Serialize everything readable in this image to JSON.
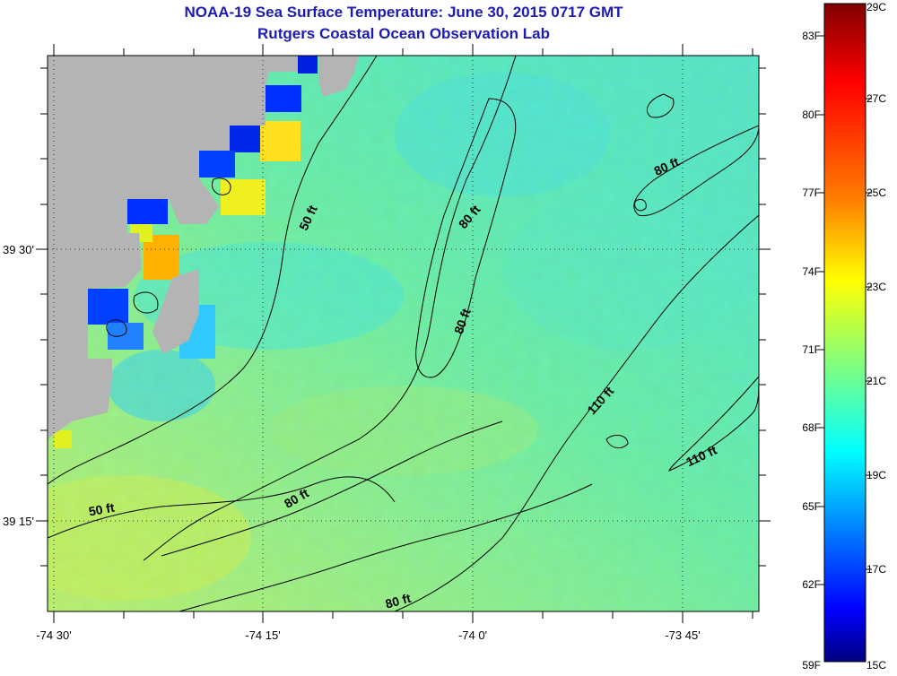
{
  "header": {
    "title": "NOAA-19 Sea Surface Temperature:  June 30, 2015 0717 GMT",
    "subtitle": "Rutgers Coastal Ocean Observation Lab"
  },
  "map": {
    "longitude_labels": [
      "-74 30'",
      "-74 15'",
      "-74 0'",
      "-73 45'"
    ],
    "latitude_labels": [
      "39 30'",
      "39 15'"
    ],
    "land_color": "#b4b4b4",
    "contour_color": "#000000",
    "contour_labels": [
      "50 ft",
      "80 ft",
      "80 ft",
      "80 ft",
      "80 ft",
      "50 ft",
      "80 ft",
      "110 ft",
      "110 ft"
    ]
  },
  "colorbar": {
    "fahrenheit_labels": [
      "83F",
      "80F",
      "77F",
      "74F",
      "71F",
      "68F",
      "65F",
      "62F",
      "59F"
    ],
    "celsius_labels": [
      "29C",
      "27C",
      "25C",
      "23C",
      "21C",
      "19C",
      "17C",
      "15C"
    ],
    "gradient_stops": [
      "#800000",
      "#ff0000",
      "#ff8000",
      "#ffff00",
      "#80ff80",
      "#00ffff",
      "#0080ff",
      "#0000ff",
      "#000080"
    ]
  },
  "chart_data": {
    "type": "heatmap",
    "title": "NOAA-19 Sea Surface Temperature:  June 30, 2015 0717 GMT",
    "subtitle": "Rutgers Coastal Ocean Observation Lab",
    "x_ticks": [
      "-74 30'",
      "-74 15'",
      "-74 0'",
      "-73 45'"
    ],
    "y_ticks": [
      "39 30'",
      "39 15'"
    ],
    "colorbar_range_F": [
      59,
      83
    ],
    "colorbar_range_C": [
      15,
      29
    ],
    "grid": true
  }
}
